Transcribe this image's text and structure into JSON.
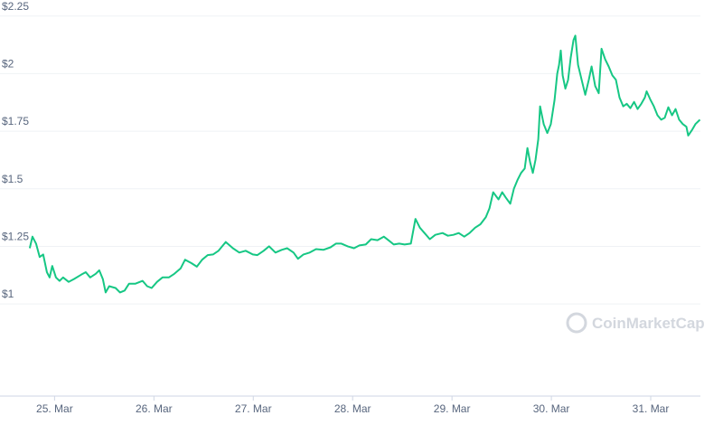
{
  "chart_data": {
    "type": "line",
    "watermark": "CoinMarketCap",
    "x": [
      24.75,
      24.777,
      24.814,
      24.85,
      24.886,
      24.923,
      24.95,
      24.977,
      25.014,
      25.05,
      25.086,
      25.141,
      25.195,
      25.268,
      25.314,
      25.359,
      25.414,
      25.45,
      25.486,
      25.514,
      25.55,
      25.614,
      25.659,
      25.705,
      25.75,
      25.814,
      25.886,
      25.932,
      25.977,
      26.032,
      26.086,
      26.15,
      26.205,
      26.268,
      26.314,
      26.377,
      26.432,
      26.486,
      26.541,
      26.595,
      26.65,
      26.723,
      26.795,
      26.859,
      26.923,
      26.995,
      27.041,
      27.105,
      27.159,
      27.223,
      27.286,
      27.341,
      27.405,
      27.45,
      27.505,
      27.568,
      27.632,
      27.705,
      27.777,
      27.832,
      27.886,
      27.95,
      28.014,
      28.068,
      28.132,
      28.186,
      28.25,
      28.314,
      28.359,
      28.414,
      28.468,
      28.523,
      28.586,
      28.632,
      28.677,
      28.723,
      28.777,
      28.832,
      28.905,
      28.959,
      29.014,
      29.068,
      29.123,
      29.177,
      29.232,
      29.286,
      29.341,
      29.377,
      29.414,
      29.468,
      29.505,
      29.541,
      29.586,
      29.623,
      29.659,
      29.695,
      29.732,
      29.759,
      29.786,
      29.814,
      29.841,
      29.868,
      29.886,
      29.923,
      29.959,
      29.995,
      30.032,
      30.059,
      30.077,
      30.095,
      30.114,
      30.141,
      30.168,
      30.195,
      30.223,
      30.241,
      30.268,
      30.305,
      30.341,
      30.377,
      30.405,
      30.441,
      30.477,
      30.505,
      30.541,
      30.577,
      30.614,
      30.65,
      30.686,
      30.723,
      30.759,
      30.795,
      30.832,
      30.868,
      30.905,
      30.941,
      30.959,
      30.995,
      31.032,
      31.068,
      31.105,
      31.141,
      31.177,
      31.214,
      31.25,
      31.286,
      31.323,
      31.359,
      31.377,
      31.414,
      31.45,
      31.495
    ],
    "series": [
      {
        "color": "#16c784",
        "values": [
          1.242,
          1.292,
          1.262,
          1.204,
          1.215,
          1.138,
          1.115,
          1.165,
          1.115,
          1.1,
          1.115,
          1.096,
          1.108,
          1.127,
          1.138,
          1.115,
          1.131,
          1.146,
          1.108,
          1.05,
          1.077,
          1.069,
          1.05,
          1.058,
          1.088,
          1.088,
          1.1,
          1.077,
          1.069,
          1.096,
          1.115,
          1.115,
          1.131,
          1.154,
          1.192,
          1.177,
          1.162,
          1.192,
          1.212,
          1.215,
          1.231,
          1.269,
          1.242,
          1.223,
          1.231,
          1.215,
          1.212,
          1.231,
          1.25,
          1.223,
          1.235,
          1.242,
          1.223,
          1.196,
          1.215,
          1.223,
          1.238,
          1.235,
          1.246,
          1.262,
          1.262,
          1.25,
          1.242,
          1.254,
          1.258,
          1.281,
          1.277,
          1.292,
          1.277,
          1.258,
          1.262,
          1.258,
          1.262,
          1.369,
          1.331,
          1.308,
          1.281,
          1.3,
          1.308,
          1.296,
          1.3,
          1.308,
          1.292,
          1.308,
          1.331,
          1.346,
          1.377,
          1.415,
          1.485,
          1.454,
          1.485,
          1.462,
          1.435,
          1.5,
          1.538,
          1.569,
          1.588,
          1.677,
          1.615,
          1.569,
          1.627,
          1.715,
          1.858,
          1.781,
          1.742,
          1.781,
          1.885,
          2.0,
          2.038,
          2.1,
          1.992,
          1.935,
          1.973,
          2.069,
          2.146,
          2.165,
          2.038,
          1.973,
          1.908,
          1.973,
          2.031,
          1.946,
          1.915,
          2.108,
          2.062,
          2.031,
          1.992,
          1.973,
          1.896,
          1.858,
          1.869,
          1.85,
          1.877,
          1.846,
          1.869,
          1.896,
          1.923,
          1.888,
          1.858,
          1.819,
          1.8,
          1.808,
          1.854,
          1.819,
          1.846,
          1.8,
          1.781,
          1.769,
          1.731,
          1.754,
          1.781,
          1.8
        ]
      }
    ],
    "xlim": [
      24.56,
      31.5
    ],
    "xticks": [
      {
        "value": 25,
        "label": "25. Mar"
      },
      {
        "value": 26,
        "label": "26. Mar"
      },
      {
        "value": 27,
        "label": "27. Mar"
      },
      {
        "value": 28,
        "label": "28. Mar"
      },
      {
        "value": 29,
        "label": "29. Mar"
      },
      {
        "value": 30,
        "label": "30. Mar"
      },
      {
        "value": 31,
        "label": "31. Mar"
      }
    ],
    "ylim": [
      0.6,
      2.3
    ],
    "yticks": [
      {
        "value": 1,
        "label": "$1"
      },
      {
        "value": 1.25,
        "label": "$1.25"
      },
      {
        "value": 1.5,
        "label": "$1.5"
      },
      {
        "value": 1.75,
        "label": "$1.75"
      },
      {
        "value": 2,
        "label": "$2"
      },
      {
        "value": 2.25,
        "label": "$2.25"
      }
    ],
    "grid": true
  }
}
